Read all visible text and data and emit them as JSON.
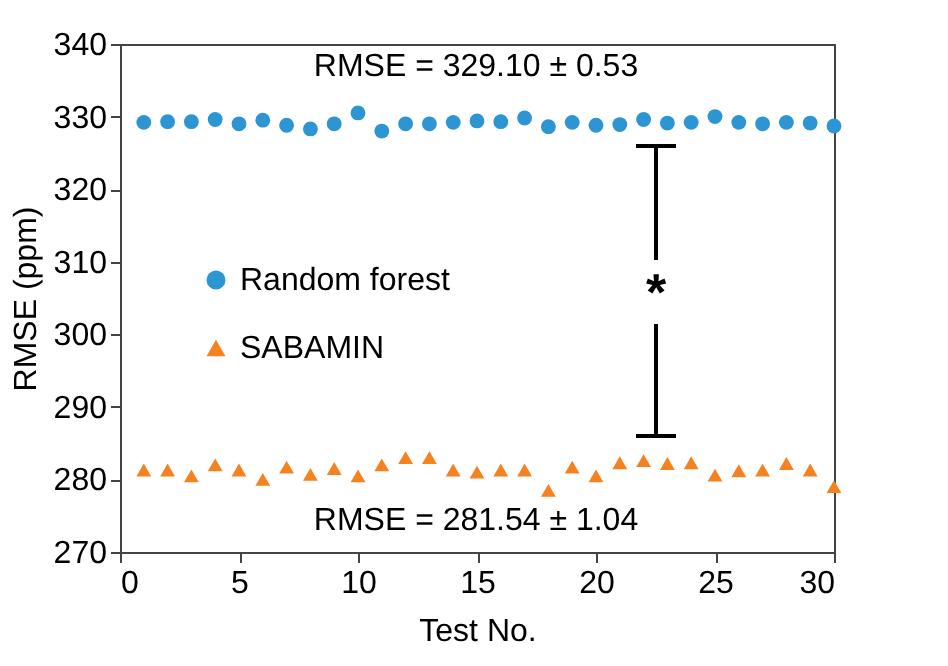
{
  "chart_data": {
    "type": "scatter",
    "xlabel": "Test No.",
    "ylabel": "RMSE (ppm)",
    "x": [
      1,
      2,
      3,
      4,
      5,
      6,
      7,
      8,
      9,
      10,
      11,
      12,
      13,
      14,
      15,
      16,
      17,
      18,
      19,
      20,
      21,
      22,
      23,
      24,
      25,
      26,
      27,
      28,
      29,
      30
    ],
    "series": [
      {
        "name": "Random forest",
        "color": "#2e95d3",
        "marker": "circle",
        "values": [
          329.2,
          329.3,
          329.3,
          329.6,
          329.0,
          329.5,
          328.8,
          328.3,
          329.0,
          330.5,
          328.0,
          329.0,
          329.0,
          329.2,
          329.4,
          329.3,
          329.8,
          328.6,
          329.2,
          328.8,
          328.9,
          329.6,
          329.1,
          329.2,
          330.0,
          329.2,
          329.0,
          329.2,
          329.1,
          328.7
        ]
      },
      {
        "name": "SABAMIN",
        "color": "#f58220",
        "marker": "triangle",
        "values": [
          281.3,
          281.3,
          280.5,
          282.0,
          281.3,
          280.0,
          281.7,
          280.7,
          281.5,
          280.5,
          282.0,
          283.0,
          283.0,
          281.3,
          281.0,
          281.3,
          281.3,
          278.5,
          281.7,
          280.5,
          282.3,
          282.6,
          282.2,
          282.3,
          280.6,
          281.2,
          281.3,
          282.2,
          281.3,
          279.0
        ]
      }
    ],
    "annotations": [
      "RMSE = 329.10 ± 0.53",
      "RMSE = 281.54 ± 1.04",
      "*"
    ],
    "xlim": [
      0,
      30
    ],
    "xticks": [
      0,
      5,
      10,
      15,
      20,
      25,
      30
    ],
    "ylim": [
      270,
      340
    ],
    "yticks": [
      270,
      280,
      290,
      300,
      310,
      320,
      330,
      340
    ],
    "grid": false,
    "legend": "left"
  }
}
